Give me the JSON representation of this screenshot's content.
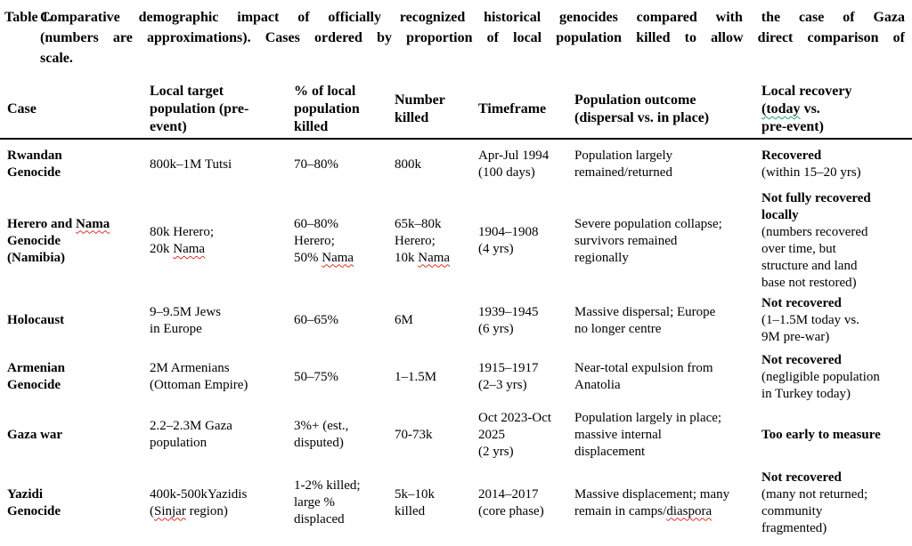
{
  "caption": {
    "label": "Table 1.",
    "lines": [
      "Comparative demographic impact of officially recognized historical genocides compared with the case of Gaza",
      "(numbers are approximations). Cases ordered by proportion of local population killed to allow direct comparison of",
      "scale."
    ],
    "full_text": "Comparative demographic impact of officially recognized historical genocides compared with the case of Gaza (numbers are approximations). Cases ordered by proportion of local population killed to allow direct comparison of scale."
  },
  "colors": {
    "text": "#000000",
    "header_rule": "#000000",
    "spell_check_underline": "#d93025",
    "grammar_check_underline": "#21a366",
    "background": "#ffffff"
  },
  "table": {
    "columns": [
      {
        "key": "case",
        "header": {
          "lines": [
            [
              {
                "t": "Case"
              }
            ]
          ]
        }
      },
      {
        "key": "local-target-population",
        "header": {
          "lines": [
            [
              {
                "t": "Local target"
              }
            ],
            [
              {
                "t": "population (pre-"
              }
            ],
            [
              {
                "t": "event)"
              }
            ]
          ]
        }
      },
      {
        "key": "pct-of-local-population-killed",
        "header": {
          "lines": [
            [
              {
                "t": "% of local"
              }
            ],
            [
              {
                "t": "population"
              }
            ],
            [
              {
                "t": "killed"
              }
            ]
          ]
        }
      },
      {
        "key": "number-killed",
        "header": {
          "lines": [
            [
              {
                "t": "Number"
              }
            ],
            [
              {
                "t": "killed"
              }
            ]
          ]
        }
      },
      {
        "key": "timeframe",
        "header": {
          "lines": [
            [
              {
                "t": "Timeframe"
              }
            ]
          ]
        }
      },
      {
        "key": "population-outcome",
        "header": {
          "lines": [
            [
              {
                "t": "Population outcome"
              }
            ],
            [
              {
                "t": "(dispersal vs. in place)"
              }
            ]
          ]
        }
      },
      {
        "key": "local-recovery",
        "header": {
          "lines": [
            [
              {
                "t": "Local recovery"
              }
            ],
            [
              {
                "t": "(today",
                "m": "grammar"
              },
              {
                "t": " vs."
              }
            ],
            [
              {
                "t": "pre-event)"
              }
            ]
          ]
        }
      }
    ],
    "rows": [
      {
        "id": "rwandan-genocide",
        "cells": [
          {
            "lines": [
              [
                {
                  "t": "Rwandan",
                  "b": true
                }
              ],
              [
                {
                  "t": "Genocide",
                  "b": true
                }
              ]
            ]
          },
          {
            "lines": [
              [
                {
                  "t": "800k–1M Tutsi"
                }
              ]
            ]
          },
          {
            "lines": [
              [
                {
                  "t": "70–80%"
                }
              ]
            ]
          },
          {
            "lines": [
              [
                {
                  "t": "800k"
                }
              ]
            ]
          },
          {
            "lines": [
              [
                {
                  "t": "Apr-Jul 1994"
                }
              ],
              [
                {
                  "t": "(100 days)"
                }
              ]
            ]
          },
          {
            "lines": [
              [
                {
                  "t": "Population largely"
                }
              ],
              [
                {
                  "t": "remained/returned"
                }
              ]
            ]
          },
          {
            "lines": [
              [
                {
                  "t": "Recovered",
                  "b": true
                }
              ],
              [
                {
                  "t": "(within 15–20 yrs)"
                }
              ]
            ]
          }
        ]
      },
      {
        "id": "herero-and-nama-genocide",
        "cells": [
          {
            "lines": [
              [
                {
                  "t": "Herero and ",
                  "b": true
                },
                {
                  "t": "Nama",
                  "b": true,
                  "m": "spell"
                }
              ],
              [
                {
                  "t": "Genocide",
                  "b": true
                }
              ],
              [
                {
                  "t": "(Namibia)",
                  "b": true
                }
              ]
            ]
          },
          {
            "lines": [
              [
                {
                  "t": "80k Herero;"
                }
              ],
              [
                {
                  "t": "20k "
                },
                {
                  "t": "Nama",
                  "m": "spell"
                }
              ]
            ]
          },
          {
            "lines": [
              [
                {
                  "t": "60–80%"
                }
              ],
              [
                {
                  "t": "Herero;"
                }
              ],
              [
                {
                  "t": "50% "
                },
                {
                  "t": "Nama",
                  "m": "spell"
                }
              ]
            ]
          },
          {
            "lines": [
              [
                {
                  "t": "65k–80k"
                }
              ],
              [
                {
                  "t": "Herero;"
                }
              ],
              [
                {
                  "t": "10k "
                },
                {
                  "t": "Nama",
                  "m": "spell"
                }
              ]
            ]
          },
          {
            "lines": [
              [
                {
                  "t": "1904–1908"
                }
              ],
              [
                {
                  "t": "(4 yrs)"
                }
              ]
            ]
          },
          {
            "lines": [
              [
                {
                  "t": "Severe population collapse;"
                }
              ],
              [
                {
                  "t": "survivors remained"
                }
              ],
              [
                {
                  "t": "regionally"
                }
              ]
            ]
          },
          {
            "lines": [
              [
                {
                  "t": "Not fully recovered",
                  "b": true
                }
              ],
              [
                {
                  "t": "locally",
                  "b": true
                }
              ],
              [
                {
                  "t": "(numbers recovered"
                }
              ],
              [
                {
                  "t": "over time, but"
                }
              ],
              [
                {
                  "t": "structure and land"
                }
              ],
              [
                {
                  "t": "base not restored)"
                }
              ]
            ]
          }
        ]
      },
      {
        "id": "holocaust",
        "cells": [
          {
            "lines": [
              [
                {
                  "t": "Holocaust",
                  "b": true
                }
              ]
            ]
          },
          {
            "lines": [
              [
                {
                  "t": "9–9.5M Jews"
                }
              ],
              [
                {
                  "t": "in Europe"
                }
              ]
            ]
          },
          {
            "lines": [
              [
                {
                  "t": "60–65%"
                }
              ]
            ]
          },
          {
            "lines": [
              [
                {
                  "t": "6M"
                }
              ]
            ]
          },
          {
            "lines": [
              [
                {
                  "t": "1939–1945"
                }
              ],
              [
                {
                  "t": "(6 yrs)"
                }
              ]
            ]
          },
          {
            "lines": [
              [
                {
                  "t": "Massive dispersal; Europe"
                }
              ],
              [
                {
                  "t": "no longer centre"
                }
              ]
            ]
          },
          {
            "lines": [
              [
                {
                  "t": "Not recovered",
                  "b": true
                }
              ],
              [
                {
                  "t": " (1–1.5M today vs."
                }
              ],
              [
                {
                  "t": "9M pre-war)"
                }
              ]
            ]
          }
        ]
      },
      {
        "id": "armenian-genocide",
        "cells": [
          {
            "lines": [
              [
                {
                  "t": "Armenian",
                  "b": true
                }
              ],
              [
                {
                  "t": "Genocide",
                  "b": true
                }
              ]
            ]
          },
          {
            "lines": [
              [
                {
                  "t": "2M Armenians"
                }
              ],
              [
                {
                  "t": "(Ottoman Empire)"
                }
              ]
            ]
          },
          {
            "lines": [
              [
                {
                  "t": "50–75%"
                }
              ]
            ]
          },
          {
            "lines": [
              [
                {
                  "t": "1–1.5M"
                }
              ]
            ]
          },
          {
            "lines": [
              [
                {
                  "t": "1915–1917"
                }
              ],
              [
                {
                  "t": "(2–3 yrs)"
                }
              ]
            ]
          },
          {
            "lines": [
              [
                {
                  "t": "Near-total expulsion from"
                }
              ],
              [
                {
                  "t": "Anatolia"
                }
              ]
            ]
          },
          {
            "lines": [
              [
                {
                  "t": "Not recovered",
                  "b": true
                }
              ],
              [
                {
                  "t": "(negligible population"
                }
              ],
              [
                {
                  "t": "in Turkey today)"
                }
              ]
            ]
          }
        ]
      },
      {
        "id": "gaza-war",
        "cells": [
          {
            "lines": [
              [
                {
                  "t": "Gaza war",
                  "b": true
                }
              ]
            ]
          },
          {
            "lines": [
              [
                {
                  "t": "2.2–2.3M Gaza"
                }
              ],
              [
                {
                  "t": "population"
                }
              ]
            ]
          },
          {
            "lines": [
              [
                {
                  "t": "3%+ (est.,"
                }
              ],
              [
                {
                  "t": "disputed)"
                }
              ]
            ]
          },
          {
            "lines": [
              [
                {
                  "t": "70-73k"
                }
              ]
            ]
          },
          {
            "lines": [
              [
                {
                  "t": "Oct 2023-Oct"
                }
              ],
              [
                {
                  "t": "2025"
                }
              ],
              [
                {
                  "t": "(2 yrs)"
                }
              ]
            ]
          },
          {
            "lines": [
              [
                {
                  "t": "Population largely in place;"
                }
              ],
              [
                {
                  "t": "massive internal"
                }
              ],
              [
                {
                  "t": "displacement"
                }
              ]
            ]
          },
          {
            "lines": [
              [
                {
                  "t": "Too early to measure",
                  "b": true
                }
              ]
            ]
          }
        ]
      },
      {
        "id": "yazidi-genocide",
        "cells": [
          {
            "lines": [
              [
                {
                  "t": "Yazidi",
                  "b": true
                }
              ],
              [
                {
                  "t": "Genocide",
                  "b": true
                }
              ]
            ]
          },
          {
            "lines": [
              [
                {
                  "t": "400k-500kYazidis"
                }
              ],
              [
                {
                  "t": "("
                },
                {
                  "t": "Sinjar",
                  "m": "spell"
                },
                {
                  "t": " region)"
                }
              ]
            ]
          },
          {
            "lines": [
              [
                {
                  "t": "1-2% killed;"
                }
              ],
              [
                {
                  "t": "large %"
                }
              ],
              [
                {
                  "t": "displaced"
                }
              ]
            ]
          },
          {
            "lines": [
              [
                {
                  "t": "5k–10k"
                }
              ],
              [
                {
                  "t": "killed"
                }
              ]
            ]
          },
          {
            "lines": [
              [
                {
                  "t": "2014–2017"
                }
              ],
              [
                {
                  "t": "(core phase)"
                }
              ]
            ]
          },
          {
            "lines": [
              [
                {
                  "t": "Massive displacement; many"
                }
              ],
              [
                {
                  "t": "remain in camps/"
                },
                {
                  "t": "diaspora",
                  "m": "spell"
                }
              ]
            ]
          },
          {
            "lines": [
              [
                {
                  "t": "Not recovered",
                  "b": true
                }
              ],
              [
                {
                  "t": "(many not returned;"
                }
              ],
              [
                {
                  "t": "community"
                }
              ],
              [
                {
                  "t": "fragmented)"
                }
              ]
            ]
          }
        ]
      }
    ]
  }
}
